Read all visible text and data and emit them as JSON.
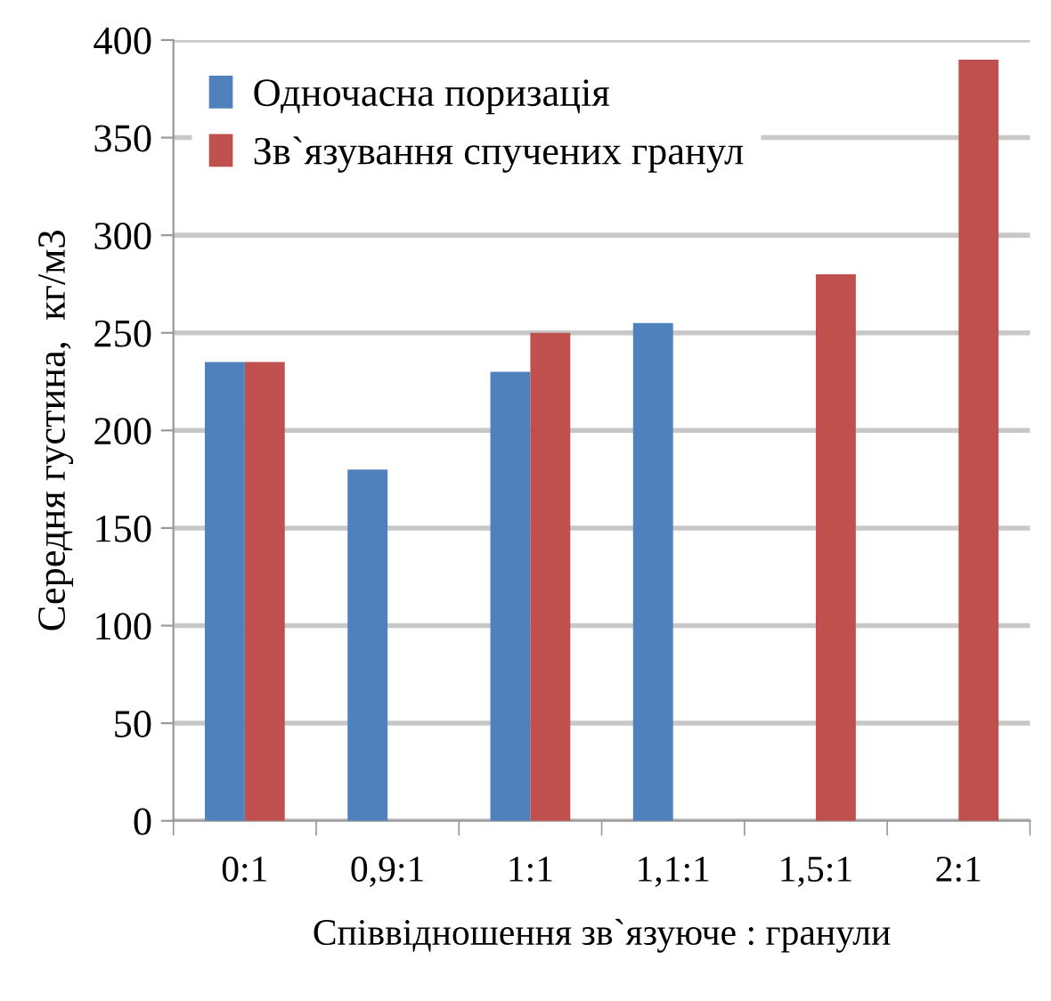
{
  "chart_data": {
    "type": "bar",
    "xlabel": "Співвідношення зв`язуюче : гранули",
    "ylabel": "Середня густина,  кг/м3",
    "categories": [
      "0:1",
      "0,9:1",
      "1:1",
      "1,1:1",
      "1,5:1",
      "2:1"
    ],
    "series": [
      {
        "name": "Одночасна поризація",
        "color": "#4f81bd",
        "values": [
          235,
          180,
          230,
          255,
          null,
          null
        ]
      },
      {
        "name": "Зв`язування спучених гранул",
        "color": "#c0504d",
        "values": [
          235,
          null,
          250,
          null,
          280,
          390
        ]
      }
    ],
    "ylim": [
      0,
      400
    ],
    "yticks": [
      0,
      50,
      100,
      150,
      200,
      250,
      300,
      350,
      400
    ],
    "grid": "y",
    "legend": "top left"
  }
}
